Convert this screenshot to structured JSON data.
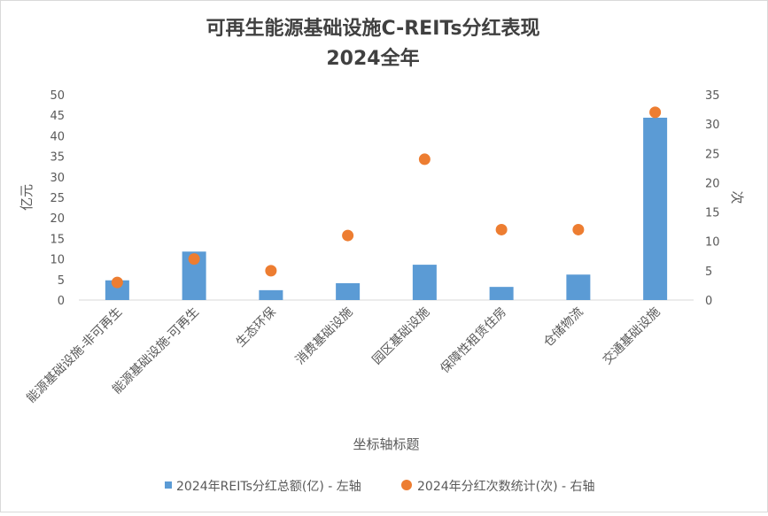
{
  "chart_data": {
    "type": "bar",
    "title": "可再生能源基础设施C-REITs分红表现",
    "subtitle": "2024全年",
    "xlabel": "坐标轴标题",
    "ylabel": "亿元",
    "y2label": "次",
    "ylim": [
      0,
      50
    ],
    "y2lim": [
      0,
      35
    ],
    "yticks": [
      "0",
      "5",
      "10",
      "15",
      "20",
      "25",
      "30",
      "35",
      "40",
      "45",
      "50"
    ],
    "y2ticks": [
      "0",
      "5",
      "10",
      "15",
      "20",
      "25",
      "30",
      "35"
    ],
    "categories": [
      "能源基础设施-非可再生",
      "能源基础设施-可再生",
      "生态环保",
      "消费基础设施",
      "园区基础设施",
      "保障性租赁住房",
      "仓储物流",
      "交通基础设施"
    ],
    "series": [
      {
        "name": "2024年REITs分红总额(亿) - 左轴",
        "type": "bar",
        "axis": "left",
        "color": "#5b9bd5",
        "values": [
          4.8,
          11.8,
          2.4,
          4.1,
          8.6,
          3.2,
          6.2,
          44.4
        ]
      },
      {
        "name": "2024年分红次数统计(次) - 右轴",
        "type": "scatter",
        "axis": "right",
        "color": "#ed7d31",
        "values": [
          3,
          7,
          5,
          11,
          24,
          12,
          12,
          32
        ]
      }
    ],
    "grid": false,
    "legend": "bottom"
  }
}
